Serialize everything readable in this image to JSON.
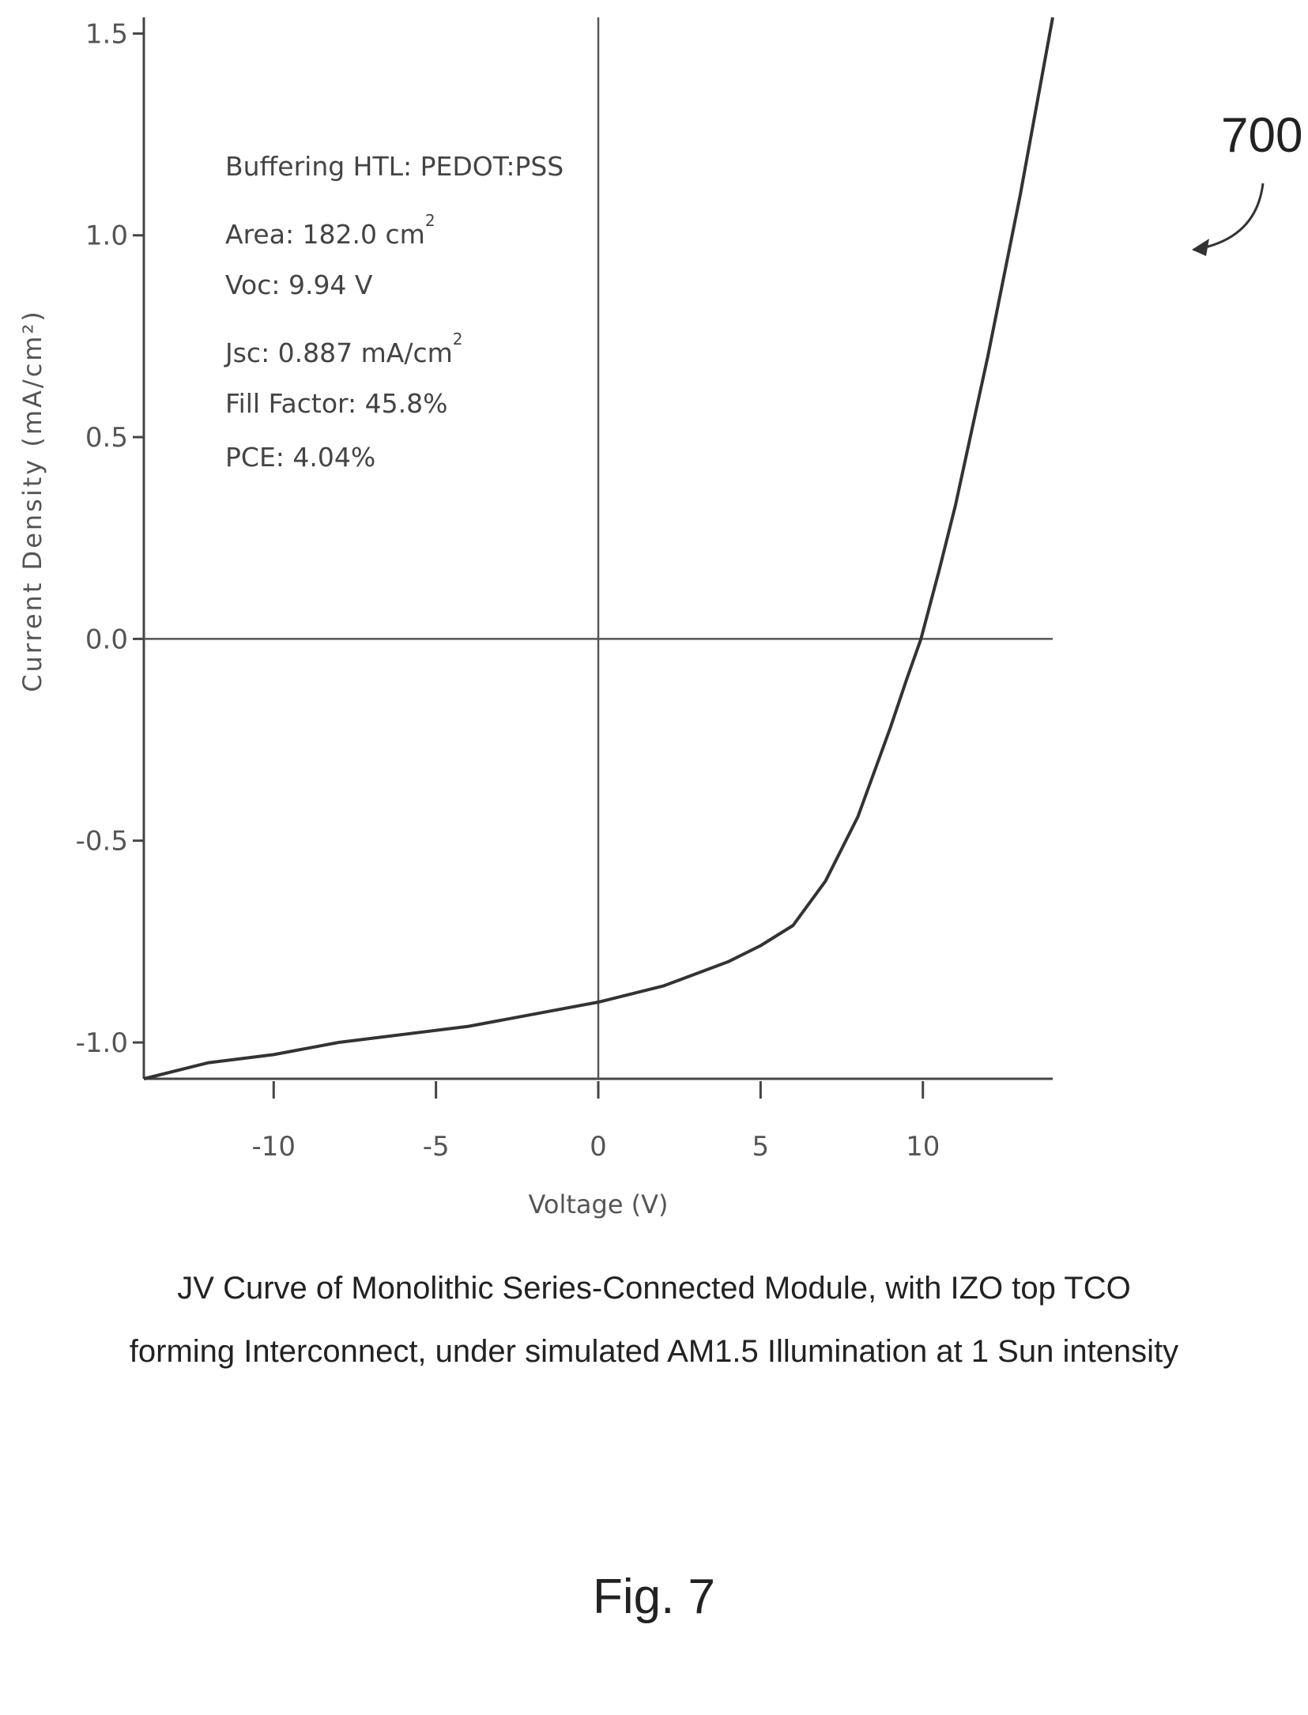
{
  "chart_data": {
    "type": "line",
    "title": "",
    "xlabel": "Voltage (V)",
    "ylabel": "Current Density (mA/cm²)",
    "xlim": [
      -14,
      14
    ],
    "ylim": [
      -1.09,
      1.54
    ],
    "xticks": [
      -10,
      -5,
      0,
      5,
      10
    ],
    "xtick_labels": [
      "-10",
      "-5",
      "0",
      "5",
      "10"
    ],
    "yticks": [
      -1.0,
      -0.5,
      0.0,
      0.5,
      1.0,
      1.5
    ],
    "ytick_labels": [
      "-1.0",
      "-0.5",
      "0.0",
      "0.5",
      "1.0",
      "1.5"
    ],
    "grid": false,
    "legend": "none",
    "zero_lines": true,
    "series": [
      {
        "x": [
          -14,
          -12,
          -10,
          -8,
          -6,
          -4,
          -2,
          0,
          2,
          4,
          5,
          6,
          7,
          8,
          9,
          9.5,
          9.94,
          10.5,
          11,
          12,
          13,
          14
        ],
        "y": [
          -1.09,
          -1.05,
          -1.03,
          -1.0,
          -0.98,
          -0.96,
          -0.93,
          -0.9,
          -0.86,
          -0.8,
          -0.76,
          -0.71,
          -0.6,
          -0.44,
          -0.22,
          -0.1,
          0.0,
          0.17,
          0.33,
          0.7,
          1.1,
          1.54
        ]
      }
    ],
    "annotations": [
      "Buffering HTL: PEDOT:PSS",
      "Area: 182.0 cm",
      "Voc: 9.94 V",
      "Jsc: 0.887 mA/cm",
      "Fill Factor: 45.8%",
      "PCE: 4.04%"
    ],
    "superscript": "2"
  },
  "reference_numeral": "700",
  "caption_lines": [
    "JV Curve of Monolithic Series-Connected Module, with IZO top TCO",
    "forming Interconnect, under simulated AM1.5 Illumination at 1 Sun intensity"
  ],
  "figure_label": "Fig. 7"
}
